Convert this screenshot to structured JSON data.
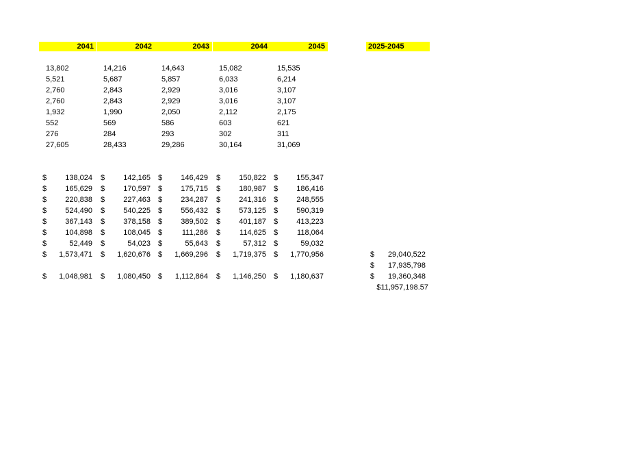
{
  "headers": [
    "2041",
    "2042",
    "2043",
    "2044",
    "2045"
  ],
  "summary_header": "2025-2045",
  "units": [
    [
      "13,802",
      "14,216",
      "14,643",
      "15,082",
      "15,535"
    ],
    [
      "5,521",
      "5,687",
      "5,857",
      "6,033",
      "6,214"
    ],
    [
      "2,760",
      "2,843",
      "2,929",
      "3,016",
      "3,107"
    ],
    [
      "2,760",
      "2,843",
      "2,929",
      "3,016",
      "3,107"
    ],
    [
      "1,932",
      "1,990",
      "2,050",
      "2,112",
      "2,175"
    ],
    [
      "552",
      "569",
      "586",
      "603",
      "621"
    ],
    [
      "276",
      "284",
      "293",
      "302",
      "311"
    ],
    [
      "27,605",
      "28,433",
      "29,286",
      "30,164",
      "31,069"
    ]
  ],
  "currency_symbol": "$",
  "amounts": [
    [
      "138,024",
      "142,165",
      "146,429",
      "150,822",
      "155,347"
    ],
    [
      "165,629",
      "170,597",
      "175,715",
      "180,987",
      "186,416"
    ],
    [
      "220,838",
      "227,463",
      "234,287",
      "241,316",
      "248,555"
    ],
    [
      "524,490",
      "540,225",
      "556,432",
      "573,125",
      "590,319"
    ],
    [
      "367,143",
      "378,158",
      "389,502",
      "401,187",
      "413,223"
    ],
    [
      "104,898",
      "108,045",
      "111,286",
      "114,625",
      "118,064"
    ],
    [
      "52,449",
      "54,023",
      "55,643",
      "57,312",
      "59,032"
    ],
    [
      "1,573,471",
      "1,620,676",
      "1,669,296",
      "1,719,375",
      "1,770,956"
    ]
  ],
  "bottom_row": [
    "1,048,981",
    "1,080,450",
    "1,112,864",
    "1,146,250",
    "1,180,637"
  ],
  "summary": {
    "total_1": "29,040,522",
    "total_2": "17,935,798",
    "total_3": "19,360,348",
    "grand": "$11,957,198.57"
  },
  "colors": {
    "header_highlight": "#ffff00"
  }
}
